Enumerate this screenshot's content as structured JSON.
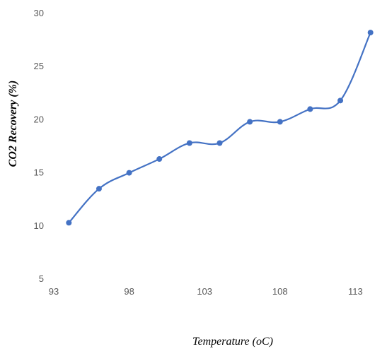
{
  "chart_data": {
    "type": "line",
    "title": "",
    "xlabel": "Temperature (oC)",
    "ylabel": "CO2 Recovery (%)",
    "xlim": [
      93,
      115
    ],
    "ylim": [
      5,
      30
    ],
    "x_ticks": [
      93,
      98,
      103,
      108,
      113
    ],
    "y_ticks": [
      5,
      10,
      15,
      20,
      25,
      30
    ],
    "grid": false,
    "legend": "none",
    "smooth": true,
    "series": [
      {
        "color": "#4472C4",
        "x": [
          94,
          96,
          98,
          100,
          102,
          104,
          106,
          108,
          110,
          112,
          114
        ],
        "y": [
          10.3,
          13.5,
          15.0,
          16.3,
          17.8,
          17.8,
          19.8,
          19.8,
          21.0,
          21.8,
          28.2
        ]
      }
    ]
  }
}
